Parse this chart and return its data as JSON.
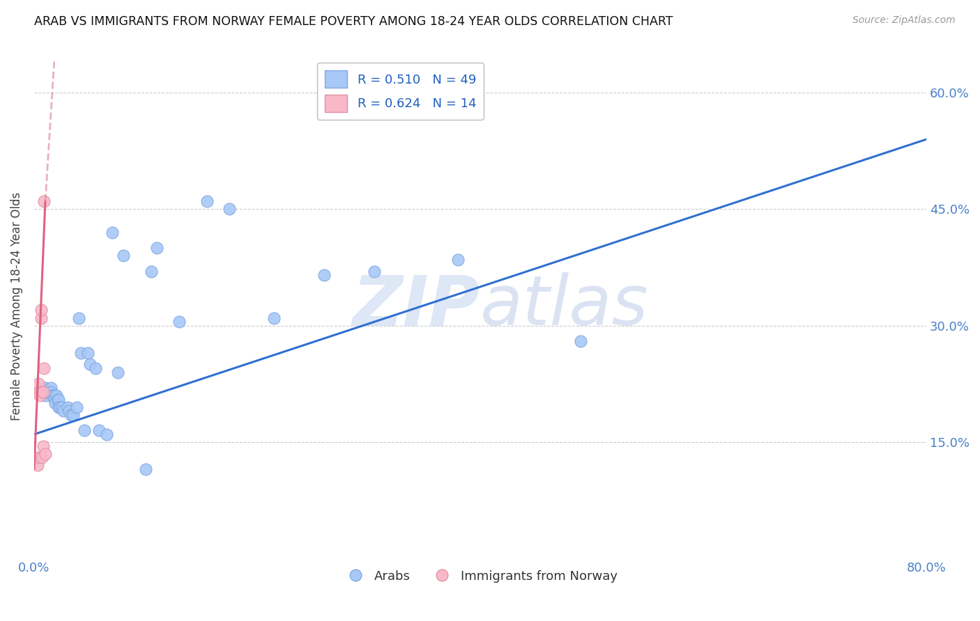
{
  "title": "ARAB VS IMMIGRANTS FROM NORWAY FEMALE POVERTY AMONG 18-24 YEAR OLDS CORRELATION CHART",
  "source": "Source: ZipAtlas.com",
  "ylabel": "Female Poverty Among 18-24 Year Olds",
  "xlim": [
    0.0,
    0.8
  ],
  "ylim": [
    0.0,
    0.65
  ],
  "xtick_positions": [
    0.0,
    0.1,
    0.2,
    0.3,
    0.4,
    0.5,
    0.6,
    0.7,
    0.8
  ],
  "xticklabels": [
    "0.0%",
    "",
    "",
    "",
    "",
    "",
    "",
    "",
    "80.0%"
  ],
  "ytick_positions": [
    0.15,
    0.3,
    0.45,
    0.6
  ],
  "ytick_labels": [
    "15.0%",
    "30.0%",
    "45.0%",
    "60.0%"
  ],
  "legend_R_arab": "0.510",
  "legend_N_arab": "49",
  "legend_R_norway": "0.624",
  "legend_N_norway": "14",
  "arab_color": "#A8C8F8",
  "arab_edge_color": "#80A8E0",
  "norway_color": "#F8B8C8",
  "norway_edge_color": "#E090A8",
  "trendline_arab_color": "#3070D0",
  "trendline_norway_solid_color": "#E06080",
  "trendline_norway_dash_color": "#E090A0",
  "watermark_zip_color": "#C8D8F0",
  "watermark_atlas_color": "#B8C8E8",
  "arab_x": [
    0.005,
    0.008,
    0.01,
    0.01,
    0.01,
    0.01,
    0.012,
    0.013,
    0.015,
    0.015,
    0.016,
    0.017,
    0.018,
    0.018,
    0.019,
    0.02,
    0.021,
    0.022,
    0.022,
    0.023,
    0.025,
    0.026,
    0.03,
    0.031,
    0.033,
    0.035,
    0.038,
    0.04,
    0.042,
    0.045,
    0.048,
    0.05,
    0.055,
    0.058,
    0.065,
    0.07,
    0.075,
    0.08,
    0.1,
    0.105,
    0.11,
    0.13,
    0.155,
    0.175,
    0.215,
    0.26,
    0.305,
    0.38,
    0.49
  ],
  "arab_y": [
    0.215,
    0.215,
    0.22,
    0.215,
    0.215,
    0.21,
    0.215,
    0.215,
    0.22,
    0.215,
    0.21,
    0.21,
    0.21,
    0.205,
    0.2,
    0.21,
    0.205,
    0.205,
    0.195,
    0.195,
    0.195,
    0.19,
    0.195,
    0.19,
    0.185,
    0.185,
    0.195,
    0.31,
    0.265,
    0.165,
    0.265,
    0.25,
    0.245,
    0.165,
    0.16,
    0.42,
    0.24,
    0.39,
    0.115,
    0.37,
    0.4,
    0.305,
    0.46,
    0.45,
    0.31,
    0.365,
    0.37,
    0.385,
    0.28
  ],
  "norway_x": [
    0.003,
    0.003,
    0.004,
    0.004,
    0.005,
    0.005,
    0.006,
    0.006,
    0.007,
    0.008,
    0.008,
    0.009,
    0.009,
    0.01
  ],
  "norway_y": [
    0.12,
    0.13,
    0.215,
    0.225,
    0.215,
    0.21,
    0.31,
    0.32,
    0.13,
    0.145,
    0.215,
    0.245,
    0.46,
    0.135
  ],
  "blue_trend_x0": 0.0,
  "blue_trend_y0": 0.16,
  "blue_trend_x1": 0.8,
  "blue_trend_y1": 0.54,
  "pink_trend_solid_x0": 0.0,
  "pink_trend_solid_y0": 0.115,
  "pink_trend_solid_x1": 0.01,
  "pink_trend_solid_y1": 0.46,
  "pink_trend_dash_x0": 0.01,
  "pink_trend_dash_y0": 0.46,
  "pink_trend_dash_x1": 0.018,
  "pink_trend_dash_y1": 0.64
}
